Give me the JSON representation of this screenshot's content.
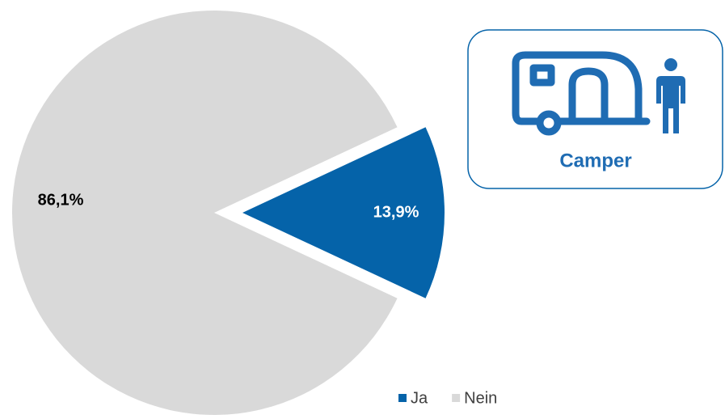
{
  "chart_data": {
    "type": "pie",
    "categories": [
      "Ja",
      "Nein"
    ],
    "values": [
      13.9,
      86.1
    ],
    "value_labels": [
      "13,9%",
      "86,1%"
    ],
    "colors": [
      "#0563a9",
      "#d9d9d9"
    ],
    "label_colors": [
      "#ffffff",
      "#000000"
    ],
    "legend": "bottom-right",
    "badge": "Camper"
  }
}
